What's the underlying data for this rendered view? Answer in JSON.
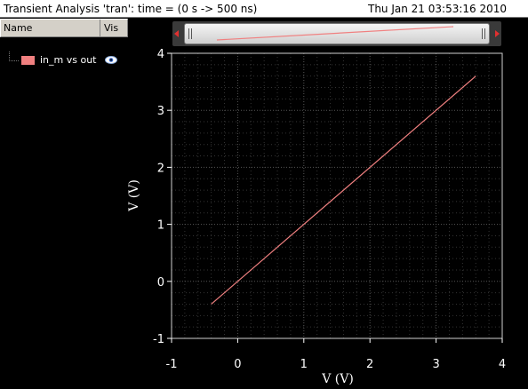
{
  "titlebar": {
    "title": "Transient Analysis 'tran': time = (0 s -> 500 ns)",
    "datetime": "Thu Jan 21 03:53:16 2010"
  },
  "legend": {
    "header_name": "Name",
    "header_vis": "Vis",
    "items": [
      {
        "label": "in_m vs out",
        "color": "#f08080",
        "visibility_icon": "eye-icon"
      }
    ]
  },
  "scrollbar": {
    "left_arrow_icon": "arrow-left-icon",
    "right_arrow_icon": "arrow-right-icon"
  },
  "chart_data": {
    "type": "line",
    "title": "",
    "xlabel": "V (V)",
    "ylabel": "V (V)",
    "xlim": [
      -1,
      4
    ],
    "ylim": [
      -1,
      4
    ],
    "x_ticks": [
      "-1",
      "0",
      "1",
      "2",
      "3",
      "4"
    ],
    "y_ticks": [
      "-1",
      "0",
      "1",
      "2",
      "3",
      "4"
    ],
    "grid": true,
    "series": [
      {
        "name": "in_m vs out",
        "color": "#f08080",
        "x": [
          -0.4,
          3.6
        ],
        "y": [
          -0.4,
          3.6
        ]
      }
    ]
  }
}
